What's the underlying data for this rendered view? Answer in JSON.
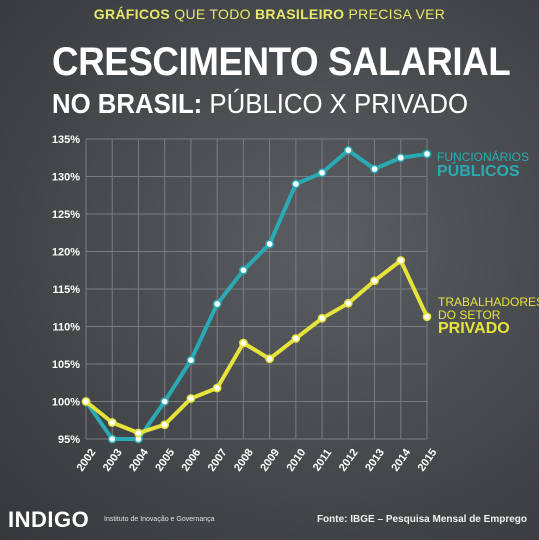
{
  "header": {
    "tagline_b1": "GRÁFICOS",
    "tagline_t1": " QUE TODO ",
    "tagline_b2": "BRASILEIRO",
    "tagline_t2": " PRECISA VER",
    "title_line1": "CRESCIMENTO SALARIAL",
    "title_line2_bold": "NO BRASIL:",
    "title_line2_regular": " PÚBLICO X PRIVADO"
  },
  "legend": {
    "public_line1": "FUNCIONÁRIOS",
    "public_line2": "PÚBLICOS",
    "private_line1": "TRABALHADORES",
    "private_line2": "DO SETOR",
    "private_line3": "PRIVADO"
  },
  "footer": {
    "logo": "INDIGO",
    "logo_sub": "Instituto de Inovação e Governança",
    "source": "Fonte: IBGE – Pesquisa Mensal de Emprego"
  },
  "colors": {
    "public": "#2aaab5",
    "private": "#e6e33a",
    "grid": "#7a7d80",
    "marker_fill": "#ffffff"
  },
  "chart_data": {
    "type": "line",
    "title": "",
    "xlabel": "",
    "ylabel": "",
    "x": [
      "2002",
      "2003",
      "2004",
      "2005",
      "2006",
      "2007",
      "2008",
      "2009",
      "2010",
      "2011",
      "2012",
      "2013",
      "2014",
      "2015"
    ],
    "yticks": [
      "135%",
      "130%",
      "125%",
      "120%",
      "115%",
      "110%",
      "105%",
      "100%",
      "95%"
    ],
    "ylim": [
      95,
      135
    ],
    "grid": true,
    "legend_position": "right",
    "series": [
      {
        "name": "FUNCIONÁRIOS PÚBLICOS",
        "color": "#2aaab5",
        "values": [
          100,
          95,
          95,
          100,
          105.5,
          113,
          117.5,
          121,
          129,
          130.5,
          133.5,
          131,
          132.5,
          133
        ]
      },
      {
        "name": "TRABALHADORES DO SETOR PRIVADO",
        "color": "#e6e33a",
        "values": [
          100,
          97.2,
          95.8,
          96.9,
          100.4,
          101.8,
          107.8,
          105.7,
          108.4,
          111.1,
          113.1,
          116.1,
          118.8,
          111.3
        ]
      }
    ]
  }
}
